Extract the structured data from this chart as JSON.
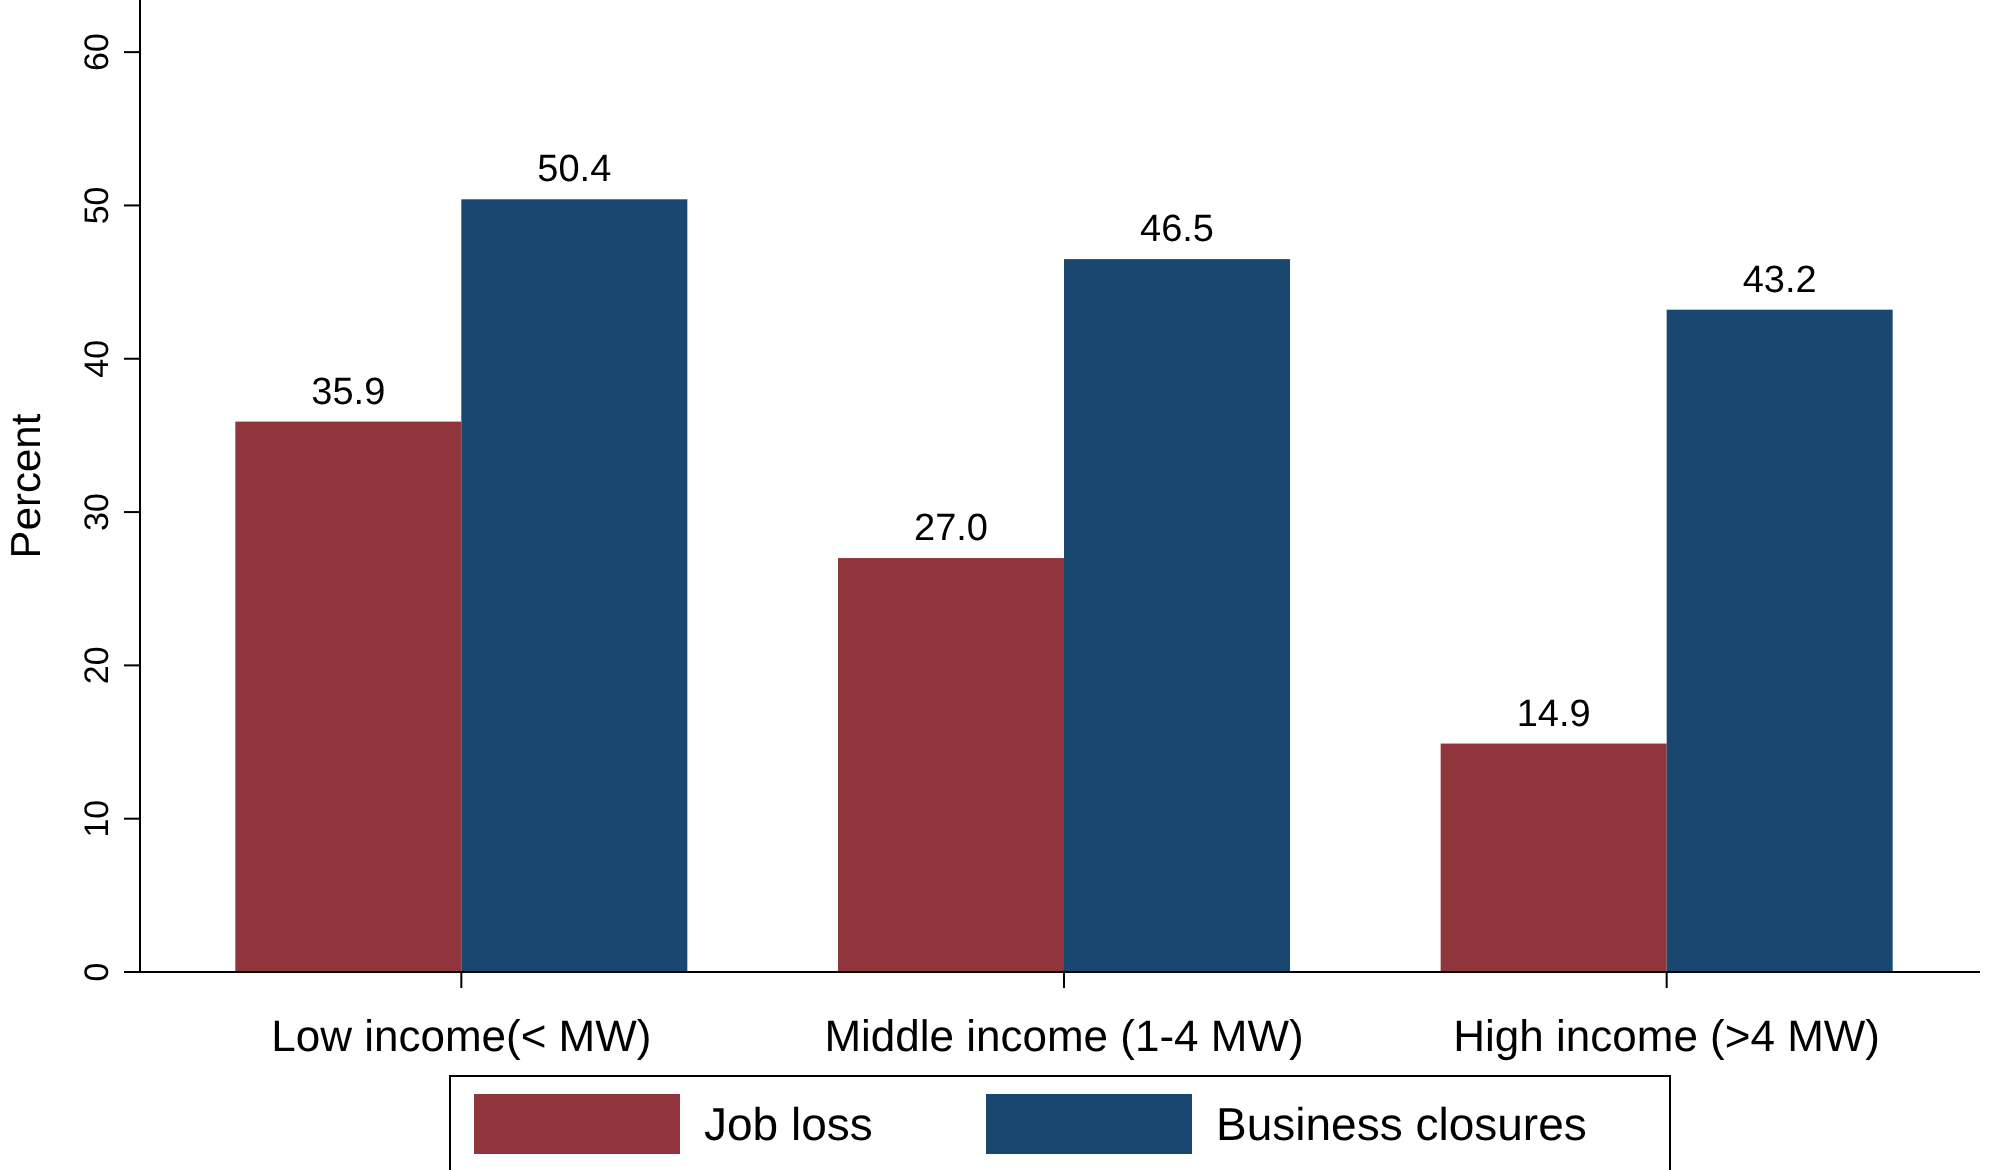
{
  "chart_data": {
    "type": "bar",
    "ylabel": "Percent",
    "categories": [
      "Low income(< MW)",
      "Middle income (1-4 MW)",
      "High income (>4 MW)"
    ],
    "series": [
      {
        "name": "Job loss",
        "color": "#90353b",
        "values": [
          35.9,
          27.0,
          14.9
        ],
        "value_labels": [
          "35.9",
          "27.0",
          "14.9"
        ]
      },
      {
        "name": "Business closures",
        "color": "#1a476f",
        "values": [
          50.4,
          46.5,
          43.2
        ],
        "value_labels": [
          "50.4",
          "46.5",
          "43.2"
        ]
      }
    ],
    "ylim": [
      0,
      63.4
    ],
    "yticks": [
      0,
      10,
      20,
      30,
      40,
      50,
      60
    ],
    "legend": "bottom",
    "grid": false
  }
}
